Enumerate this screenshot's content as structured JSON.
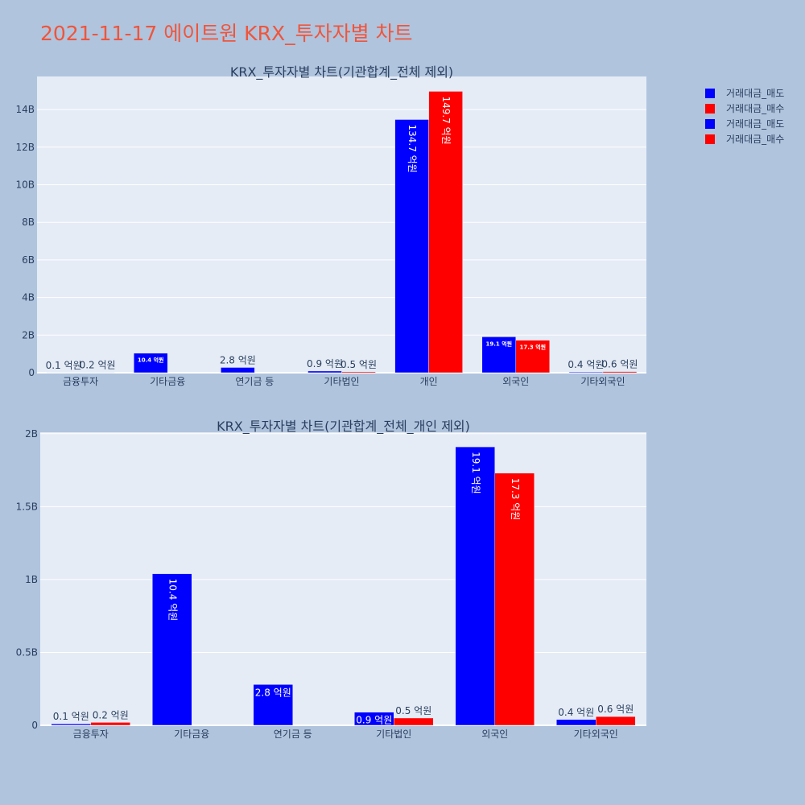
{
  "page": {
    "title": "2021-11-17 에이트원 KRX_투자자별 차트"
  },
  "colors": {
    "sell": "#0000ff",
    "buy": "#ff0000",
    "plot_bg": "#e5ecf6",
    "paper_bg": "#b0c4de",
    "text": "#2a3f5f"
  },
  "legend": [
    {
      "label": "거래대금_매도",
      "color": "#0000ff"
    },
    {
      "label": "거래대금_매수",
      "color": "#ff0000"
    },
    {
      "label": "거래대금_매도",
      "color": "#0000ff"
    },
    {
      "label": "거래대금_매수",
      "color": "#ff0000"
    }
  ],
  "chart_data": [
    {
      "type": "bar",
      "title": "KRX_투자자별 차트(기관합계_전체 제외)",
      "categories": [
        "금융투자",
        "기타금융",
        "연기금 등",
        "기타법인",
        "개인",
        "외국인",
        "기타외국인"
      ],
      "series": [
        {
          "name": "거래대금_매도",
          "values": [
            10000000,
            1040000000,
            280000000,
            90000000,
            13470000000,
            1910000000,
            40000000
          ],
          "labels": [
            "0.1 억원",
            "10.4 억원",
            "2.8 억원",
            "0.9 억원",
            "134.7 억원",
            "19.1 억원",
            "0.4 억원"
          ]
        },
        {
          "name": "거래대금_매수",
          "values": [
            20000000,
            0,
            0,
            50000000,
            14970000000,
            1730000000,
            60000000
          ],
          "labels": [
            "0.2 억원",
            "",
            "",
            "0.5 억원",
            "149.7 억원",
            "17.3 억원",
            "0.6 억원"
          ]
        }
      ],
      "yticks": [
        0,
        2000000000,
        4000000000,
        6000000000,
        8000000000,
        10000000000,
        12000000000,
        14000000000
      ],
      "ytick_labels": [
        "0",
        "2B",
        "4B",
        "6B",
        "8B",
        "10B",
        "12B",
        "14B"
      ],
      "ylim": [
        0,
        15760000000
      ],
      "grid": true,
      "legend_position": "top-right"
    },
    {
      "type": "bar",
      "title": "KRX_투자자별 차트(기관합계_전체_개인 제외)",
      "categories": [
        "금융투자",
        "기타금융",
        "연기금 등",
        "기타법인",
        "외국인",
        "기타외국인"
      ],
      "series": [
        {
          "name": "거래대금_매도",
          "values": [
            10000000,
            1040000000,
            280000000,
            90000000,
            1910000000,
            40000000
          ],
          "labels": [
            "0.1 억원",
            "10.4 억원",
            "2.8 억원",
            "0.9 억원",
            "19.1 억원",
            "0.4 억원"
          ]
        },
        {
          "name": "거래대금_매수",
          "values": [
            20000000,
            0,
            0,
            50000000,
            1730000000,
            60000000
          ],
          "labels": [
            "0.2 억원",
            "",
            "",
            "0.5 억원",
            "17.3 억원",
            "0.6 억원"
          ]
        }
      ],
      "yticks": [
        0,
        500000000,
        1000000000,
        1500000000,
        2000000000
      ],
      "ytick_labels": [
        "0",
        "0.5B",
        "1B",
        "1.5B",
        "2B"
      ],
      "ylim": [
        0,
        2010000000
      ],
      "grid": true
    }
  ]
}
